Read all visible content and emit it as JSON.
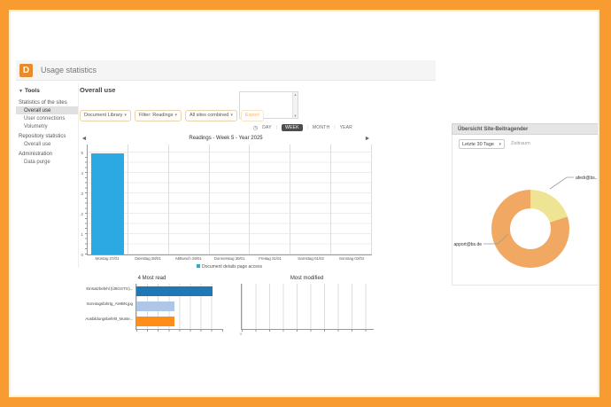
{
  "icons": {
    "caret_down": "▾",
    "tools_caret": "▼",
    "clock": "◷",
    "prev_arrow": "◄",
    "next_arrow": "►",
    "scroll_up": "▲",
    "scroll_down": "▼"
  },
  "colors": {
    "frame_orange": "#F89B30",
    "logo_orange": "#E98A2B",
    "bar_blue": "#2AAAE1",
    "selected_tab_bg": "#4D4D4D"
  },
  "header": {
    "logo_letter": "D",
    "title": "Usage statistics"
  },
  "sidebar": {
    "tools_label": "Tools",
    "sections": [
      {
        "label": "Statistics of the sites",
        "items": [
          {
            "label": "Overall use",
            "selected": true
          },
          {
            "label": "User connections",
            "selected": false
          },
          {
            "label": "Volumetry",
            "selected": false
          }
        ]
      },
      {
        "label": "Repository statistics",
        "items": [
          {
            "label": "Overall use",
            "selected": false
          }
        ]
      },
      {
        "label": "Administration",
        "items": [
          {
            "label": "Data purge",
            "selected": false
          }
        ]
      }
    ]
  },
  "main": {
    "heading": "Overall use",
    "filters": [
      {
        "label": "Document Library"
      },
      {
        "label": "Filter: Readings"
      },
      {
        "label": "All sites combined"
      }
    ],
    "export_label": "Export",
    "period_tabs": [
      {
        "label": "DAY",
        "selected": false
      },
      {
        "label": "WEEK",
        "selected": true
      },
      {
        "label": "MONTH",
        "selected": false
      },
      {
        "label": "YEAR",
        "selected": false
      }
    ],
    "chart_title": "Readings - Week 5 - Year 2025",
    "legend": "Document details page access"
  },
  "right_panel": {
    "title": "Übersicht Site-Beitragender",
    "range_select": "Letzte 30 Tage",
    "range_label": "Zeitraum"
  },
  "chart_data": [
    {
      "type": "bar",
      "title": "Readings - Week 5 - Year 2025",
      "categories": [
        "Montag 27/01",
        "Dienstag 28/01",
        "Mittwoch 29/01",
        "Donnerstag 30/01",
        "Freitag 31/01",
        "Samstag 01/02",
        "Sonntag 02/02"
      ],
      "series": [
        {
          "name": "Document details page access",
          "color": "#2AAAE1",
          "values": [
            5,
            0,
            0,
            0,
            0,
            0,
            0
          ]
        }
      ],
      "xlabel": "",
      "ylabel": "",
      "ylim": [
        0,
        5
      ],
      "ytick_step": 1,
      "grid": true,
      "legend_position": "bottom"
    },
    {
      "type": "bar",
      "orientation": "horizontal",
      "title": "4 Most read",
      "categories": [
        "Einsatzbefehl (ÜBGSTG)...",
        "Sonntagsfahrtg_AWBN.jpg",
        "Ausbildungsbefehl_Muste..."
      ],
      "values": [
        2,
        1,
        1
      ],
      "colors": [
        "#1F77B4",
        "#AEC7E8",
        "#FF8E19"
      ],
      "xlim": [
        0,
        2.25
      ],
      "grid": true
    },
    {
      "type": "bar",
      "title": "Most modified",
      "categories": [],
      "values": [],
      "x_origin_label": "0",
      "grid": true
    },
    {
      "type": "pie",
      "donut": true,
      "title": "Übersicht Site-Beitragender",
      "labels": [
        "afedr@bs...",
        "apport@bs.de"
      ],
      "values": [
        20,
        80
      ],
      "colors": [
        "#EFE493",
        "#F1A862"
      ]
    }
  ]
}
